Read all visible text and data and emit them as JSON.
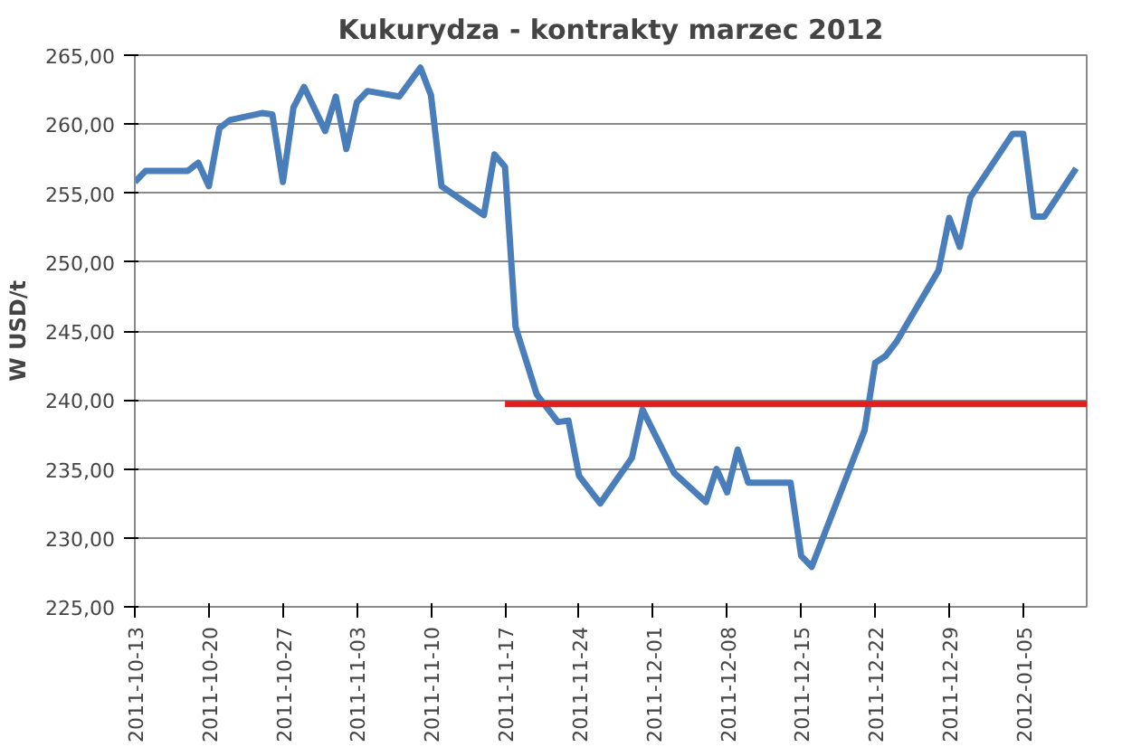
{
  "chart_data": {
    "type": "line",
    "title": "Kukurydza - kontrakty marzec 2012",
    "ylabel": "W USD/t",
    "x": [
      "2011-10-13",
      "2011-10-14",
      "2011-10-18",
      "2011-10-19",
      "2011-10-20",
      "2011-10-21",
      "2011-10-22",
      "2011-10-25",
      "2011-10-26",
      "2011-10-27",
      "2011-10-28",
      "2011-10-29",
      "2011-10-31",
      "2011-11-01",
      "2011-11-02",
      "2011-11-03",
      "2011-11-04",
      "2011-11-07",
      "2011-11-09",
      "2011-11-10",
      "2011-11-11",
      "2011-11-15",
      "2011-11-16",
      "2011-11-17",
      "2011-11-18",
      "2011-11-20",
      "2011-11-22",
      "2011-11-23",
      "2011-11-24",
      "2011-11-26",
      "2011-11-29",
      "2011-11-30",
      "2011-12-03",
      "2011-12-06",
      "2011-12-07",
      "2011-12-08",
      "2011-12-09",
      "2011-12-10",
      "2011-12-14",
      "2011-12-15",
      "2011-12-16",
      "2011-12-21",
      "2011-12-22",
      "2011-12-23",
      "2011-12-24",
      "2011-12-28",
      "2011-12-29",
      "2011-12-30",
      "2011-12-31",
      "2012-01-04",
      "2012-01-05",
      "2012-01-06",
      "2012-01-07",
      "2012-01-10"
    ],
    "series": [
      {
        "color": "#4a7ebb",
        "values": [
          255.8,
          256.6,
          256.6,
          257.2,
          255.5,
          259.7,
          260.3,
          260.8,
          260.7,
          255.8,
          261.2,
          262.7,
          259.5,
          262.0,
          258.2,
          261.6,
          262.4,
          262.0,
          264.1,
          262.1,
          255.5,
          253.4,
          257.8,
          256.9,
          245.3,
          240.4,
          238.4,
          238.5,
          234.5,
          232.5,
          235.8,
          239.3,
          234.7,
          232.6,
          235.0,
          233.3,
          236.4,
          234.0,
          234.0,
          228.7,
          227.9,
          237.8,
          242.7,
          243.2,
          244.2,
          249.4,
          253.2,
          251.1,
          254.7,
          259.3,
          259.3,
          253.3,
          253.3,
          256.8
        ]
      },
      {
        "color": "#e0201e",
        "x": [
          "2011-11-17",
          "2012-01-11"
        ],
        "values": [
          239.7,
          239.7
        ]
      }
    ],
    "xlim": [
      "2011-10-13",
      "2012-01-11"
    ],
    "xticks": [
      "2011-10-13",
      "2011-10-20",
      "2011-10-27",
      "2011-11-03",
      "2011-11-10",
      "2011-11-17",
      "2011-11-24",
      "2011-12-01",
      "2011-12-08",
      "2011-12-15",
      "2011-12-22",
      "2011-12-29",
      "2012-01-05"
    ],
    "ylim": [
      225,
      265
    ],
    "yticks": [
      {
        "value": 225,
        "label": "225,00"
      },
      {
        "value": 230,
        "label": "230,00"
      },
      {
        "value": 235,
        "label": "235,00"
      },
      {
        "value": 240,
        "label": "240,00"
      },
      {
        "value": 245,
        "label": "245,00"
      },
      {
        "value": 250,
        "label": "250,00"
      },
      {
        "value": 255,
        "label": "255,00"
      },
      {
        "value": 260,
        "label": "260,00"
      },
      {
        "value": 265,
        "label": "265,00"
      }
    ],
    "grid": "y",
    "line_style": "solid",
    "marker": "none"
  }
}
